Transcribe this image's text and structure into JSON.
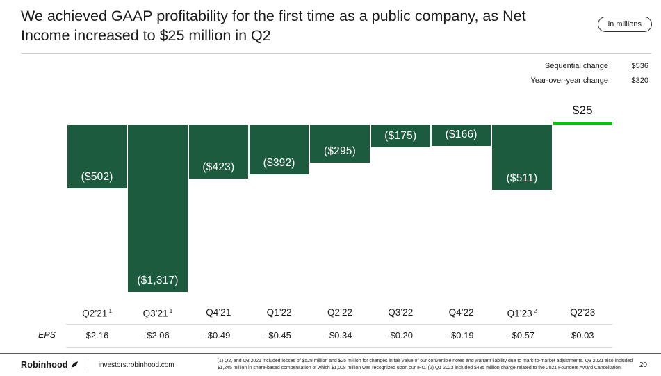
{
  "header": {
    "title_line1": "We achieved GAAP profitability for the first time as a public company, as Net",
    "title_line2": "Income increased to $25 million in Q2",
    "units_badge": "in millions"
  },
  "changes": [
    {
      "label": "Sequential change",
      "value": "$536"
    },
    {
      "label": "Year-over-year change",
      "value": "$320"
    }
  ],
  "chart_data": {
    "type": "bar",
    "categories": [
      {
        "label": "Q2’21",
        "sup": "1"
      },
      {
        "label": "Q3’21",
        "sup": "1"
      },
      {
        "label": "Q4’21",
        "sup": ""
      },
      {
        "label": "Q1’22",
        "sup": ""
      },
      {
        "label": "Q2’22",
        "sup": ""
      },
      {
        "label": "Q3’22",
        "sup": ""
      },
      {
        "label": "Q4’22",
        "sup": ""
      },
      {
        "label": "Q1’23",
        "sup": "2"
      },
      {
        "label": "Q2’23",
        "sup": ""
      }
    ],
    "values": [
      -502,
      -1317,
      -423,
      -392,
      -295,
      -175,
      -166,
      -511,
      25
    ],
    "value_labels": [
      "($502)",
      "($1,317)",
      "($423)",
      "($392)",
      "($295)",
      "($175)",
      "($166)",
      "($511)",
      "$25"
    ],
    "eps_label": "EPS",
    "eps": [
      "-$2.16",
      "-$2.06",
      "-$0.49",
      "-$0.45",
      "-$0.34",
      "-$0.20",
      "-$0.19",
      "-$0.57",
      "$0.03"
    ],
    "colors": {
      "negative": "#1d5b3f",
      "positive": "#00c805"
    },
    "ylim": [
      -1400,
      100
    ],
    "grid": false,
    "legend": "none"
  },
  "footer": {
    "brand": "Robinhood",
    "site": "investors.robinhood.com",
    "footnote": "(1) Q2, and Q3 2021 included losses of $528 million and $25 million for changes in fair value of our convertible notes and warrant liability due to mark-to-market adjustments. Q3 2021 also included $1,245 million in share-based compensation of which $1,008 million was recognized upon our IPO. (2) Q1 2023 included $485 million charge related to the 2021 Founders Award Cancellation.",
    "page_number": "20"
  }
}
